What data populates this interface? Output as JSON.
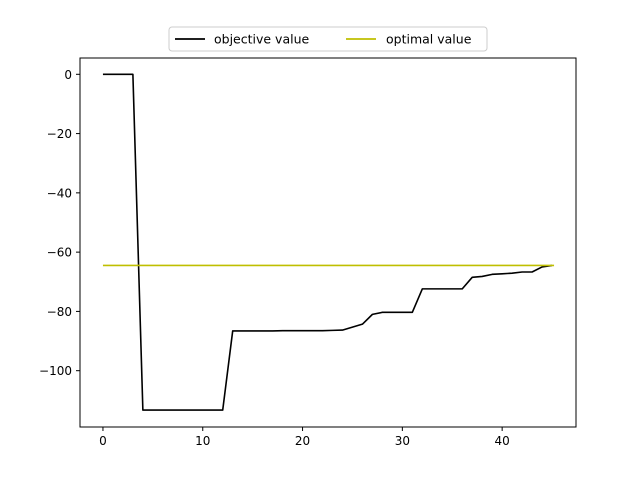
{
  "chart_data": {
    "type": "line",
    "title": "",
    "xlabel": "",
    "ylabel": "",
    "xlim": [
      -2.3,
      47.4
    ],
    "ylim": [
      -119,
      5.5
    ],
    "xticks": [
      0,
      10,
      20,
      30,
      40
    ],
    "yticks": [
      0,
      -20,
      -40,
      -60,
      -80,
      -100
    ],
    "xtick_labels": [
      "0",
      "10",
      "20",
      "30",
      "40"
    ],
    "ytick_labels": [
      "0",
      "−20",
      "−40",
      "−60",
      "−80",
      "−100"
    ],
    "grid": false,
    "legend": {
      "placement": "top-center-outside",
      "entries": [
        "objective value",
        "optimal value"
      ]
    },
    "series": [
      {
        "name": "objective value",
        "color": "#000000",
        "x": [
          0,
          1,
          2,
          3,
          4,
          5,
          6,
          7,
          8,
          9,
          10,
          11,
          12,
          13,
          14,
          15,
          16,
          17,
          18,
          19,
          20,
          21,
          22,
          23,
          24,
          25,
          26,
          27,
          28,
          29,
          30,
          31,
          32,
          33,
          34,
          35,
          36,
          37,
          38,
          39,
          40,
          41,
          42,
          43,
          44,
          45
        ],
        "y": [
          0,
          0,
          0,
          0,
          -113.3,
          -113.3,
          -113.3,
          -113.3,
          -113.3,
          -113.3,
          -113.3,
          -113.3,
          -113.3,
          -86.6,
          -86.6,
          -86.6,
          -86.6,
          -86.6,
          -86.5,
          -86.5,
          -86.5,
          -86.5,
          -86.5,
          -86.4,
          -86.3,
          -85.3,
          -84.3,
          -81,
          -80.3,
          -80.3,
          -80.3,
          -80.3,
          -72.4,
          -72.4,
          -72.4,
          -72.4,
          -72.4,
          -68.5,
          -68.2,
          -67.5,
          -67.3,
          -67.1,
          -66.7,
          -66.7,
          -65,
          -64.5
        ]
      },
      {
        "name": "optimal value",
        "color": "#bfbf00",
        "x": [
          0,
          45.2
        ],
        "y": [
          -64.5,
          -64.5
        ]
      }
    ]
  }
}
